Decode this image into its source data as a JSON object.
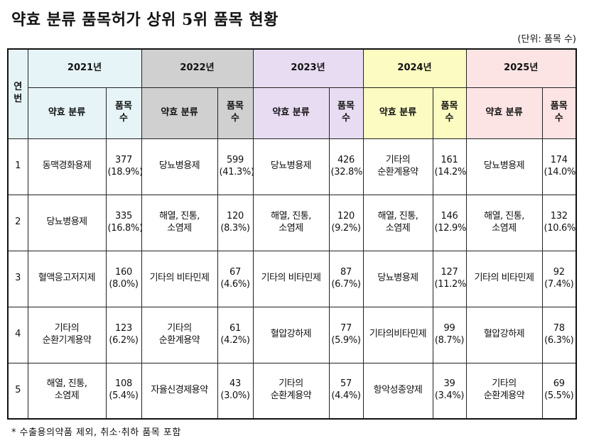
{
  "title": "약효 분류 품목허가 상위 5위 품목 현황",
  "unit": "(단위: 품목 수)",
  "corner_label": [
    "연",
    "번"
  ],
  "sub_headers": {
    "category": "약효 분류",
    "count_line1": "품목",
    "count_line2": "수"
  },
  "years": [
    "2021년",
    "2022년",
    "2023년",
    "2024년",
    "2025년"
  ],
  "rows": [
    {
      "rank": "1",
      "cells": [
        {
          "name": [
            "동맥경화용제"
          ],
          "count": "377",
          "pct": "(18.9%)"
        },
        {
          "name": [
            "당뇨병용제"
          ],
          "count": "599",
          "pct": "(41.3%)"
        },
        {
          "name": [
            "당뇨병용제"
          ],
          "count": "426",
          "pct": "(32.8%)"
        },
        {
          "name": [
            "기타의",
            "순환계용약"
          ],
          "count": "161",
          "pct": "(14.2%)"
        },
        {
          "name": [
            "당뇨병용제"
          ],
          "count": "174",
          "pct": "(14.0%)"
        }
      ]
    },
    {
      "rank": "2",
      "cells": [
        {
          "name": [
            "당뇨병용제"
          ],
          "count": "335",
          "pct": "(16.8%)"
        },
        {
          "name": [
            "해열, 진통,",
            "소염제"
          ],
          "count": "120",
          "pct": "(8.3%)"
        },
        {
          "name": [
            "해열, 진통,",
            "소염제"
          ],
          "count": "120",
          "pct": "(9.2%)"
        },
        {
          "name": [
            "해열, 진통,",
            "소염제"
          ],
          "count": "146",
          "pct": "(12.9%)"
        },
        {
          "name": [
            "해열, 진통,",
            "소염제"
          ],
          "count": "132",
          "pct": "(10.6%)"
        }
      ]
    },
    {
      "rank": "3",
      "cells": [
        {
          "name": [
            "혈액응고저지제"
          ],
          "count": "160",
          "pct": "(8.0%)"
        },
        {
          "name": [
            "기타의 비타민제"
          ],
          "count": "67",
          "pct": "(4.6%)"
        },
        {
          "name": [
            "기타의 비타민제"
          ],
          "count": "87",
          "pct": "(6.7%)"
        },
        {
          "name": [
            "당뇨병용제"
          ],
          "count": "127",
          "pct": "(11.2%)"
        },
        {
          "name": [
            "기타의 비타민제"
          ],
          "count": "92",
          "pct": "(7.4%)"
        }
      ]
    },
    {
      "rank": "4",
      "cells": [
        {
          "name": [
            "기타의",
            "순환기계용약"
          ],
          "count": "123",
          "pct": "(6.2%)"
        },
        {
          "name": [
            "기타의",
            "순환계용약"
          ],
          "count": "61",
          "pct": "(4.2%)"
        },
        {
          "name": [
            "혈압강하제"
          ],
          "count": "77",
          "pct": "(5.9%)"
        },
        {
          "name": [
            "기타의비타민제"
          ],
          "count": "99",
          "pct": "(8.7%)"
        },
        {
          "name": [
            "혈압강하제"
          ],
          "count": "78",
          "pct": "(6.3%)"
        }
      ]
    },
    {
      "rank": "5",
      "cells": [
        {
          "name": [
            "해열, 진통,",
            "소염제"
          ],
          "count": "108",
          "pct": "(5.4%)"
        },
        {
          "name": [
            "자율신경제용약"
          ],
          "count": "43",
          "pct": "(3.0%)"
        },
        {
          "name": [
            "기타의",
            "순환계용약"
          ],
          "count": "57",
          "pct": "(4.4%)"
        },
        {
          "name": [
            "항악성종양제"
          ],
          "count": "39",
          "pct": "(3.4%)"
        },
        {
          "name": [
            "기타의",
            "순환계용약"
          ],
          "count": "69",
          "pct": "(5.5%)"
        }
      ]
    }
  ],
  "footnote": "* 수출용의약품 제외, 취소·취하 품목 포함"
}
